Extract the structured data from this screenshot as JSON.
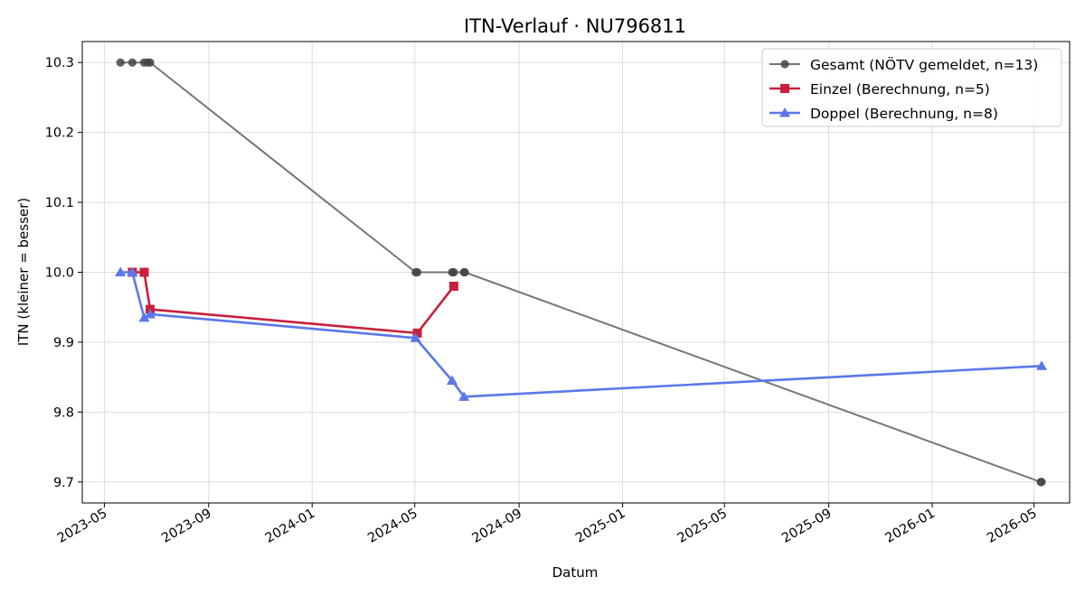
{
  "chart_data": {
    "type": "line",
    "title": "ITN-Verlauf · NU796811",
    "xlabel": "Datum",
    "ylabel": "ITN  (kleiner = besser)",
    "x_type": "date",
    "xlim": [
      "2023-04-05",
      "2026-06-12"
    ],
    "ylim": [
      9.67,
      10.33
    ],
    "x_ticks": [
      "2023-05-01",
      "2023-09-01",
      "2024-01-01",
      "2024-05-01",
      "2024-09-01",
      "2025-01-01",
      "2025-05-01",
      "2025-09-01",
      "2026-01-01",
      "2026-05-01"
    ],
    "x_tick_labels": [
      "2023-05",
      "2023-09",
      "2024-01",
      "2024-05",
      "2024-09",
      "2025-01",
      "2025-05",
      "2025-09",
      "2026-01",
      "2026-05"
    ],
    "y_ticks": [
      9.7,
      9.8,
      9.9,
      10.0,
      10.1,
      10.2,
      10.3
    ],
    "y_tick_labels": [
      "9.7",
      "9.8",
      "9.9",
      "10.0",
      "10.1",
      "10.2",
      "10.3"
    ],
    "grid": true,
    "legend_position": "top-right",
    "series": [
      {
        "name": "Gesamt (NÖTV gemeldet, n=13)",
        "color": "#777777",
        "marker": "circle",
        "points": [
          {
            "x": "2023-05-20",
            "y": 10.3
          },
          {
            "x": "2023-06-03",
            "y": 10.3
          },
          {
            "x": "2023-06-17",
            "y": 10.3
          },
          {
            "x": "2023-06-21",
            "y": 10.3
          },
          {
            "x": "2023-06-24",
            "y": 10.3
          },
          {
            "x": "2024-05-02",
            "y": 10.0
          },
          {
            "x": "2024-05-04",
            "y": 10.0
          },
          {
            "x": "2024-06-14",
            "y": 10.0
          },
          {
            "x": "2024-06-16",
            "y": 10.0
          },
          {
            "x": "2024-06-28",
            "y": 10.0
          },
          {
            "x": "2024-06-29",
            "y": 10.0
          },
          {
            "x": "2026-05-09",
            "y": 9.7
          },
          {
            "x": "2026-05-10",
            "y": 9.7
          }
        ]
      },
      {
        "name": "Einzel (Berechnung, n=5)",
        "color": "#c8203c",
        "marker": "square",
        "points": [
          {
            "x": "2023-06-03",
            "y": 10.0
          },
          {
            "x": "2023-06-17",
            "y": 10.0
          },
          {
            "x": "2023-06-24",
            "y": 9.947
          },
          {
            "x": "2024-05-04",
            "y": 9.913
          },
          {
            "x": "2024-06-16",
            "y": 9.98
          }
        ]
      },
      {
        "name": "Doppel (Berechnung, n=8)",
        "color": "#5a78ea",
        "marker": "triangle",
        "points": [
          {
            "x": "2023-05-20",
            "y": 10.0
          },
          {
            "x": "2023-06-03",
            "y": 10.0
          },
          {
            "x": "2023-06-17",
            "y": 9.935
          },
          {
            "x": "2023-06-24",
            "y": 9.94
          },
          {
            "x": "2024-05-02",
            "y": 9.906
          },
          {
            "x": "2024-06-14",
            "y": 9.845
          },
          {
            "x": "2024-06-28",
            "y": 9.822
          },
          {
            "x": "2026-05-10",
            "y": 9.866
          }
        ]
      }
    ]
  }
}
